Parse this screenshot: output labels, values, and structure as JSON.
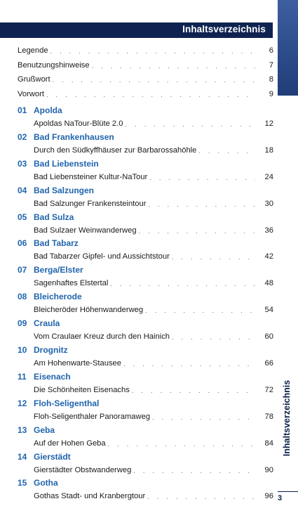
{
  "header": {
    "title": "Inhaltsverzeichnis"
  },
  "side_tab": {
    "label": "Inhaltsverzeichnis"
  },
  "page_number": "3",
  "front_matter": [
    {
      "title": "Legende",
      "page": "6"
    },
    {
      "title": "Benutzungshinweise",
      "page": "7"
    },
    {
      "title": "Grußwort",
      "page": "8"
    },
    {
      "title": "Vorwort",
      "page": "9"
    }
  ],
  "chapters": [
    {
      "num": "01",
      "place": "Apolda",
      "tour": "Apoldas NaTour-Blüte 2.0",
      "page": "12"
    },
    {
      "num": "02",
      "place": "Bad Frankenhausen",
      "tour": "Durch den Südkyffhäuser zur Barbarossahöhle",
      "page": "18"
    },
    {
      "num": "03",
      "place": "Bad Liebenstein",
      "tour": "Bad Liebensteiner Kultur-NaTour",
      "page": "24"
    },
    {
      "num": "04",
      "place": "Bad Salzungen",
      "tour": "Bad Salzunger Frankensteintour",
      "page": "30"
    },
    {
      "num": "05",
      "place": "Bad Sulza",
      "tour": "Bad Sulzaer Weinwanderweg",
      "page": "36"
    },
    {
      "num": "06",
      "place": "Bad Tabarz",
      "tour": "Bad Tabarzer Gipfel- und Aussichtstour",
      "page": "42"
    },
    {
      "num": "07",
      "place": "Berga/Elster",
      "tour": "Sagenhaftes Elstertal",
      "page": "48"
    },
    {
      "num": "08",
      "place": "Bleicherode",
      "tour": "Bleicheröder Höhenwanderweg",
      "page": "54"
    },
    {
      "num": "09",
      "place": "Craula",
      "tour": "Vom Craulaer Kreuz durch den Hainich",
      "page": "60"
    },
    {
      "num": "10",
      "place": "Drognitz",
      "tour": "Am Hohenwarte-Stausee",
      "page": "66"
    },
    {
      "num": "11",
      "place": "Eisenach",
      "tour": "Die Schönheiten Eisenachs",
      "page": "72"
    },
    {
      "num": "12",
      "place": "Floh-Seligenthal",
      "tour": "Floh-Seligenthaler Panoramaweg",
      "page": "78"
    },
    {
      "num": "13",
      "place": "Geba",
      "tour": "Auf der Hohen Geba",
      "page": "84"
    },
    {
      "num": "14",
      "place": "Gierstädt",
      "tour": "Gierstädter Obstwanderweg",
      "page": "90"
    },
    {
      "num": "15",
      "place": "Gotha",
      "tour": "Gothas Stadt- und Kranbergtour",
      "page": "96"
    }
  ]
}
